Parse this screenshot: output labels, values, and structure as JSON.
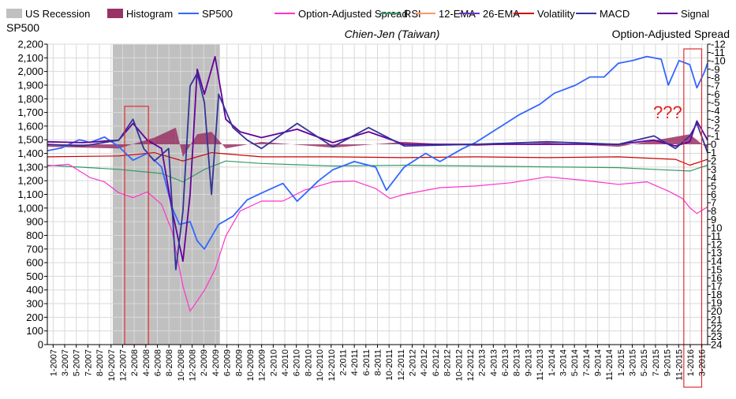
{
  "chart_data": {
    "type": "line",
    "title": "Chien-Jen (Taiwan)",
    "left_axis_label": "SP500",
    "right_axis_label": "Option-Adjusted Spread",
    "annotation": "???",
    "ylim_left": [
      0,
      2200
    ],
    "ylim_right": [
      -12,
      24
    ],
    "right_axis_inverted": true,
    "left_ticks": [
      "0",
      "100",
      "200",
      "300",
      "400",
      "500",
      "600",
      "700",
      "800",
      "900",
      "1,000",
      "1,100",
      "1,200",
      "1,300",
      "1,400",
      "1,500",
      "1,600",
      "1,700",
      "1,800",
      "1,900",
      "2,000",
      "2,100",
      "2,200"
    ],
    "right_ticks": [
      "-12",
      "-11",
      "-10",
      "-9",
      "-8",
      "-7",
      "-6",
      "-5",
      "-4",
      "-3",
      "-2",
      "-1",
      "0",
      "1",
      "2",
      "3",
      "4",
      "5",
      "6",
      "7",
      "8",
      "9",
      "10",
      "11",
      "12",
      "13",
      "14",
      "15",
      "16",
      "17",
      "18",
      "19",
      "20",
      "21",
      "22",
      "23",
      "24"
    ],
    "x_ticks": [
      "1-2007",
      "3-2007",
      "5-2007",
      "7-2007",
      "8-2007",
      "10-2007",
      "12-2007",
      "2-2008",
      "4-2008",
      "6-2008",
      "8-2008",
      "10-2008",
      "12-2008",
      "2-2009",
      "4-2009",
      "6-2009",
      "8-2009",
      "10-2009",
      "12-2009",
      "2-2010",
      "4-2010",
      "6-2010",
      "8-2010",
      "10-2010",
      "12-2010",
      "2-2011",
      "4-2011",
      "6-2011",
      "8-2011",
      "10-2011",
      "12-2011",
      "2-2012",
      "4-2012",
      "6-2012",
      "8-2012",
      "10-2012",
      "12-2012",
      "2-2013",
      "4-2013",
      "6-2013",
      "8-2013",
      "9-2013",
      "11-2013",
      "1-2014",
      "3-2014",
      "5-2014",
      "7-2014",
      "9-2014",
      "11-2014",
      "1-2015",
      "3-2015",
      "5-2015",
      "7-2015",
      "9-2015",
      "11-2015",
      "1-2016",
      "3-2016"
    ],
    "legend": [
      "US Recession",
      "Histogram",
      "SP500",
      "Option-Adjusted Spread",
      "RSI",
      "12-EMA",
      "26-EMA",
      "Volatility",
      "MACD",
      "Signal"
    ],
    "colors": {
      "US Recession": "#c0c0c0",
      "Histogram": "#993366",
      "SP500": "#3366ff",
      "Option-Adjusted Spread": "#ff33cc",
      "RSI": "#339966",
      "12-EMA": "#ff9966",
      "26-EMA": "#6633cc",
      "Volatility": "#cc0000",
      "MACD": "#333399",
      "Signal": "#660099",
      "highlight": "#e03030"
    },
    "recession": {
      "start": "12-2007",
      "end": "6-2009"
    },
    "highlight_boxes": [
      {
        "start": "2-2008",
        "end": "6-2008"
      },
      {
        "start": "12-2015",
        "end": "3-2016"
      }
    ],
    "series": [
      {
        "name": "SP500",
        "axis": "left",
        "x": [
          2007.0,
          2007.2,
          2007.45,
          2007.6,
          2007.8,
          2008.0,
          2008.2,
          2008.4,
          2008.6,
          2008.75,
          2008.85,
          2009.0,
          2009.1,
          2009.2,
          2009.4,
          2009.6,
          2009.8,
          2010.0,
          2010.3,
          2010.5,
          2010.8,
          2011.0,
          2011.3,
          2011.6,
          2011.75,
          2012.0,
          2012.3,
          2012.5,
          2012.8,
          2013.0,
          2013.3,
          2013.6,
          2013.9,
          2014.1,
          2014.4,
          2014.6,
          2014.8,
          2015.0,
          2015.2,
          2015.4,
          2015.6,
          2015.7,
          2015.85,
          2016.0,
          2016.1,
          2016.2,
          2016.25
        ],
        "values": [
          1420,
          1440,
          1500,
          1480,
          1520,
          1450,
          1350,
          1400,
          1300,
          1000,
          880,
          900,
          760,
          700,
          880,
          940,
          1060,
          1110,
          1180,
          1050,
          1200,
          1280,
          1340,
          1300,
          1130,
          1300,
          1400,
          1340,
          1430,
          1480,
          1580,
          1680,
          1760,
          1840,
          1900,
          1960,
          1960,
          2060,
          2080,
          2110,
          2090,
          1900,
          2080,
          2050,
          1880,
          1990,
          2060
        ]
      },
      {
        "name": "Option-Adjusted Spread",
        "axis": "right",
        "x": [
          2007.0,
          2007.3,
          2007.6,
          2007.8,
          2008.0,
          2008.2,
          2008.4,
          2008.6,
          2008.75,
          2008.9,
          2009.0,
          2009.2,
          2009.35,
          2009.5,
          2009.7,
          2010.0,
          2010.3,
          2010.6,
          2011.0,
          2011.3,
          2011.6,
          2011.8,
          2012.0,
          2012.5,
          2013.0,
          2013.5,
          2014.0,
          2014.5,
          2015.0,
          2015.4,
          2015.7,
          2015.9,
          2016.0,
          2016.1,
          2016.25
        ],
        "values": [
          2.6,
          2.4,
          4.0,
          4.5,
          5.8,
          6.4,
          5.7,
          7.2,
          10.5,
          17.0,
          20.0,
          17.5,
          15.0,
          11.0,
          8.0,
          6.8,
          6.8,
          5.5,
          4.5,
          4.4,
          5.3,
          6.5,
          6.0,
          5.2,
          5.0,
          4.6,
          3.9,
          4.3,
          4.8,
          4.5,
          5.6,
          6.5,
          7.6,
          8.3,
          7.5
        ]
      },
      {
        "name": "MACD",
        "axis": "right",
        "x": [
          2007.0,
          2007.5,
          2008.0,
          2008.2,
          2008.35,
          2008.5,
          2008.7,
          2008.8,
          2008.9,
          2009.0,
          2009.1,
          2009.2,
          2009.3,
          2009.4,
          2009.6,
          2009.8,
          2010.0,
          2010.5,
          2011.0,
          2011.5,
          2012.0,
          2013.0,
          2014.0,
          2015.0,
          2015.5,
          2015.8,
          2016.0,
          2016.1,
          2016.25
        ],
        "values": [
          0,
          0.2,
          -0.5,
          -3.0,
          0.5,
          2.0,
          0.5,
          15.0,
          8.0,
          -7.0,
          -8.5,
          -5.0,
          6.0,
          -6.0,
          -2.0,
          -0.5,
          0.5,
          -2.5,
          0.3,
          -2.0,
          0.2,
          0,
          -0.3,
          0,
          -1.0,
          0.5,
          -1.0,
          -2.5,
          1.0
        ]
      },
      {
        "name": "Signal",
        "axis": "right",
        "x": [
          2007.0,
          2007.5,
          2008.0,
          2008.2,
          2008.4,
          2008.6,
          2008.75,
          2008.9,
          2009.0,
          2009.1,
          2009.2,
          2009.35,
          2009.5,
          2009.7,
          2010.0,
          2010.5,
          2011.0,
          2011.5,
          2012.0,
          2013.0,
          2014.0,
          2015.0,
          2015.5,
          2015.8,
          2016.0,
          2016.1,
          2016.25
        ],
        "values": [
          -0.3,
          -0.2,
          -0.5,
          -2.5,
          -0.5,
          0.5,
          8.0,
          14.0,
          6.0,
          -9.0,
          -6.0,
          -10.5,
          -3.0,
          -1.5,
          -0.8,
          -1.8,
          -0.2,
          -1.5,
          0,
          0,
          0,
          0,
          -0.5,
          0.2,
          -0.3,
          -2.8,
          -0.5
        ]
      },
      {
        "name": "RSI",
        "axis": "right",
        "x": [
          2007.0,
          2008.0,
          2008.6,
          2008.9,
          2009.2,
          2009.5,
          2010.0,
          2011.0,
          2012.0,
          2013.0,
          2014.0,
          2015.0,
          2015.5,
          2016.0,
          2016.25
        ],
        "values": [
          2.5,
          3.0,
          3.5,
          4.5,
          3.0,
          2.0,
          2.3,
          2.6,
          2.5,
          2.6,
          2.7,
          2.8,
          3.0,
          3.2,
          2.5
        ]
      },
      {
        "name": "Volatility",
        "axis": "right",
        "x": [
          2007.0,
          2008.0,
          2008.5,
          2008.9,
          2009.3,
          2010.0,
          2011.0,
          2012.0,
          2013.0,
          2014.0,
          2015.0,
          2015.8,
          2016.0,
          2016.25
        ],
        "values": [
          1.5,
          1.4,
          1.0,
          2.0,
          1.0,
          1.5,
          1.5,
          1.6,
          1.5,
          1.6,
          1.5,
          1.8,
          2.5,
          1.8
        ]
      },
      {
        "name": "Histogram",
        "axis": "right",
        "x": [
          2007.0,
          2008.0,
          2008.5,
          2008.8,
          2008.9,
          2009.1,
          2009.3,
          2009.5,
          2010.0,
          2011.0,
          2012.0,
          2013.0,
          2014.0,
          2015.0,
          2016.0,
          2016.25
        ],
        "values": [
          0.3,
          0.5,
          -0.8,
          -2.0,
          1.5,
          -1.2,
          -1.5,
          0.5,
          -0.3,
          0.4,
          -0.3,
          0.2,
          -0.2,
          0.3,
          -1.2,
          0.5
        ]
      }
    ]
  }
}
